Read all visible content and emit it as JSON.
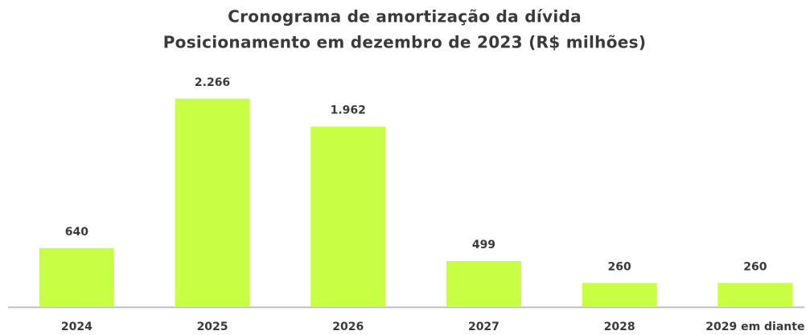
{
  "chart_data": {
    "type": "bar",
    "title": "Cronograma de amortização da dívida",
    "subtitle": "Posicionamento em dezembro de 2023 (R$ milhões)",
    "categories": [
      "2024",
      "2025",
      "2026",
      "2027",
      "2028",
      "2029 em diante"
    ],
    "values": [
      640,
      2266,
      1962,
      499,
      260,
      260
    ],
    "value_labels": [
      "640",
      "2.266",
      "1.962",
      "499",
      "260",
      "260"
    ],
    "color": "#c8ff45",
    "ylim": [
      0,
      2500
    ]
  }
}
